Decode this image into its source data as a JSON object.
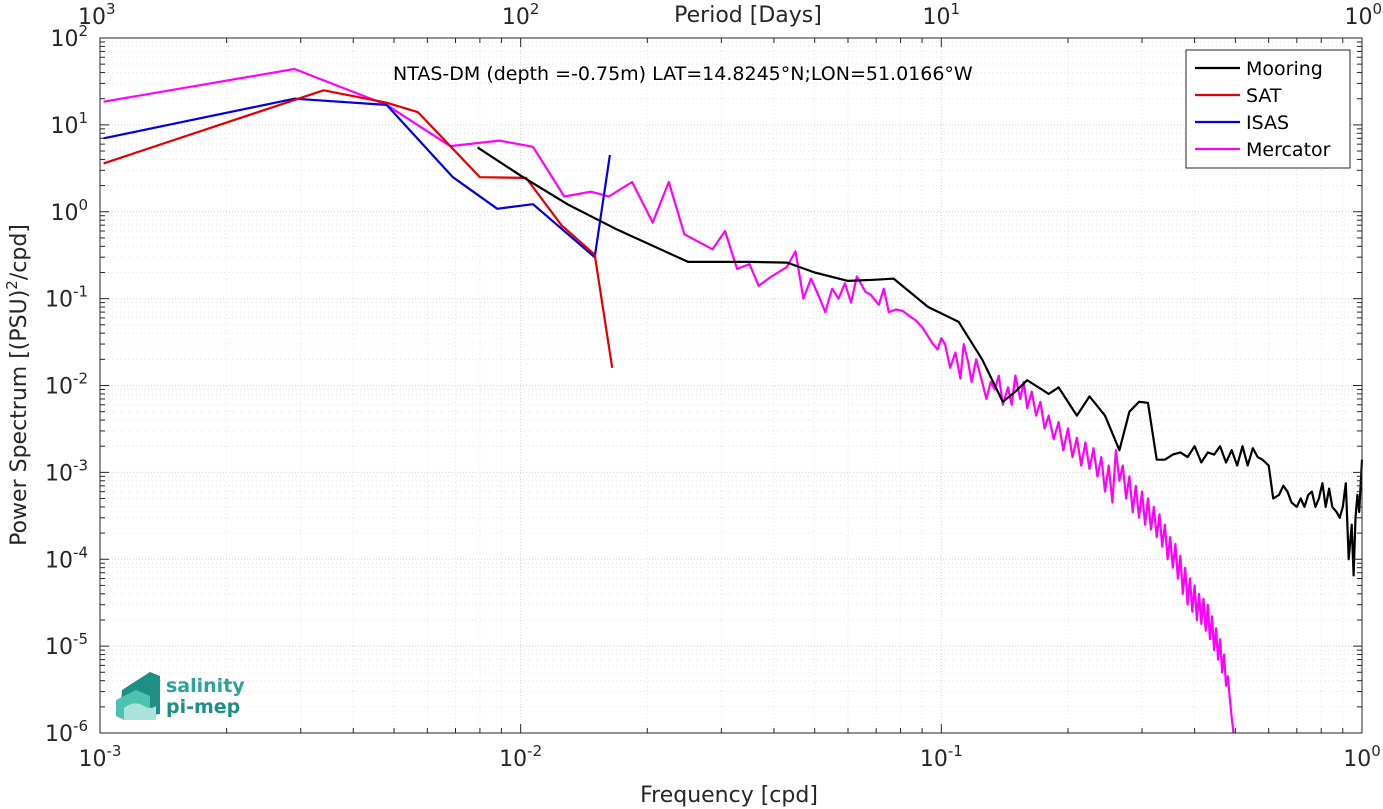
{
  "chart_data": {
    "type": "line",
    "title": "NTAS-DM (depth =-0.75m) LAT=14.8245°N;LON=51.0166°W",
    "xlabel": "Frequency [cpd]",
    "ylabel": "Power Spectrum [(PSU)^2/cpd]",
    "ylabel_parts": {
      "pre": "Power Spectrum [(PSU)",
      "sup": "2",
      "post": "/cpd]"
    },
    "top_axis_label": "Period [Days]",
    "x_scale": "log",
    "y_scale": "log",
    "xlim": [
      0.001,
      1
    ],
    "ylim": [
      1e-06,
      100
    ],
    "grid": true,
    "legend_position": "top-right",
    "x_ticks": [
      {
        "value": 0.001,
        "base": "10",
        "exp": "-3"
      },
      {
        "value": 0.01,
        "base": "10",
        "exp": "-2"
      },
      {
        "value": 0.1,
        "base": "10",
        "exp": "-1"
      },
      {
        "value": 1,
        "base": "10",
        "exp": "0"
      }
    ],
    "y_ticks": [
      {
        "value": 100,
        "base": "10",
        "exp": "2"
      },
      {
        "value": 10,
        "base": "10",
        "exp": "1"
      },
      {
        "value": 1,
        "base": "10",
        "exp": "0"
      },
      {
        "value": 0.1,
        "base": "10",
        "exp": "-1"
      },
      {
        "value": 0.01,
        "base": "10",
        "exp": "-2"
      },
      {
        "value": 0.001,
        "base": "10",
        "exp": "-3"
      },
      {
        "value": 0.0001,
        "base": "10",
        "exp": "-4"
      },
      {
        "value": 1e-05,
        "base": "10",
        "exp": "-5"
      },
      {
        "value": 1e-06,
        "base": "10",
        "exp": "-6"
      }
    ],
    "top_ticks": [
      {
        "freq": 0.001,
        "base": "10",
        "exp": "3"
      },
      {
        "freq": 0.01,
        "base": "10",
        "exp": "2"
      },
      {
        "freq": 0.1,
        "base": "10",
        "exp": "1"
      },
      {
        "freq": 1,
        "base": "10",
        "exp": "0"
      }
    ],
    "series": [
      {
        "name": "Mooring",
        "color": "#000000",
        "points": [
          [
            0.0079,
            5.5
          ],
          [
            0.01,
            2.6
          ],
          [
            0.013,
            1.2
          ],
          [
            0.017,
            0.62
          ],
          [
            0.025,
            0.265
          ],
          [
            0.03,
            0.265
          ],
          [
            0.035,
            0.265
          ],
          [
            0.043,
            0.26
          ],
          [
            0.05,
            0.2
          ],
          [
            0.06,
            0.16
          ],
          [
            0.07,
            0.165
          ],
          [
            0.077,
            0.17
          ],
          [
            0.093,
            0.08
          ],
          [
            0.11,
            0.054
          ],
          [
            0.125,
            0.02
          ],
          [
            0.14,
            0.0065
          ],
          [
            0.15,
            0.0085
          ],
          [
            0.16,
            0.0115
          ],
          [
            0.18,
            0.008
          ],
          [
            0.19,
            0.0095
          ],
          [
            0.21,
            0.0045
          ],
          [
            0.225,
            0.0075
          ],
          [
            0.245,
            0.0045
          ],
          [
            0.265,
            0.0018
          ],
          [
            0.28,
            0.005
          ],
          [
            0.295,
            0.0065
          ],
          [
            0.31,
            0.0063
          ],
          [
            0.325,
            0.0014
          ],
          [
            0.34,
            0.0014
          ],
          [
            0.355,
            0.0016
          ],
          [
            0.37,
            0.0017
          ],
          [
            0.385,
            0.0015
          ],
          [
            0.4,
            0.002
          ],
          [
            0.415,
            0.0013
          ],
          [
            0.43,
            0.0017
          ],
          [
            0.445,
            0.0016
          ],
          [
            0.46,
            0.002
          ],
          [
            0.475,
            0.0013
          ],
          [
            0.49,
            0.0018
          ],
          [
            0.505,
            0.0012
          ],
          [
            0.52,
            0.002
          ],
          [
            0.535,
            0.0012
          ],
          [
            0.55,
            0.0019
          ],
          [
            0.565,
            0.0015
          ],
          [
            0.58,
            0.0014
          ],
          [
            0.6,
            0.0012
          ],
          [
            0.615,
            0.0005
          ],
          [
            0.635,
            0.00055
          ],
          [
            0.65,
            0.0007
          ],
          [
            0.665,
            0.0006
          ],
          [
            0.68,
            0.00045
          ],
          [
            0.7,
            0.0004
          ],
          [
            0.715,
            0.0005
          ],
          [
            0.73,
            0.0004
          ],
          [
            0.745,
            0.00055
          ],
          [
            0.76,
            0.0006
          ],
          [
            0.775,
            0.0004
          ],
          [
            0.79,
            0.0005
          ],
          [
            0.805,
            0.00075
          ],
          [
            0.82,
            0.0004
          ],
          [
            0.835,
            0.00065
          ],
          [
            0.85,
            0.0004
          ],
          [
            0.87,
            0.00035
          ],
          [
            0.885,
            0.0003
          ],
          [
            0.9,
            0.0004
          ],
          [
            0.915,
            0.00075
          ],
          [
            0.93,
            0.0001
          ],
          [
            0.945,
            0.00025
          ],
          [
            0.955,
            6.5e-05
          ],
          [
            0.965,
            0.0003
          ],
          [
            0.975,
            0.00055
          ],
          [
            0.985,
            0.00035
          ],
          [
            1.0,
            0.0014
          ]
        ]
      },
      {
        "name": "SAT",
        "color": "#e00000",
        "points": [
          [
            0.00102,
            3.6
          ],
          [
            0.0034,
            25
          ],
          [
            0.0048,
            18
          ],
          [
            0.0057,
            14
          ],
          [
            0.008,
            2.5
          ],
          [
            0.0103,
            2.45
          ],
          [
            0.0125,
            0.7
          ],
          [
            0.015,
            0.32
          ],
          [
            0.0165,
            0.016
          ]
        ]
      },
      {
        "name": "ISAS",
        "color": "#0000e0",
        "points": [
          [
            0.00102,
            7
          ],
          [
            0.0029,
            20
          ],
          [
            0.0048,
            17
          ],
          [
            0.0069,
            2.5
          ],
          [
            0.0088,
            1.08
          ],
          [
            0.0107,
            1.22
          ],
          [
            0.015,
            0.3
          ],
          [
            0.0163,
            4.5
          ]
        ]
      },
      {
        "name": "Mercator",
        "color": "#ff00ff",
        "points": [
          [
            0.00102,
            18.5
          ],
          [
            0.0029,
            44
          ],
          [
            0.0048,
            17
          ],
          [
            0.0068,
            5.7
          ],
          [
            0.0089,
            6.6
          ],
          [
            0.0107,
            5.6
          ],
          [
            0.0127,
            1.5
          ],
          [
            0.0147,
            1.7
          ],
          [
            0.0162,
            1.5
          ],
          [
            0.0184,
            2.2
          ],
          [
            0.0206,
            0.75
          ],
          [
            0.0225,
            2.2
          ],
          [
            0.0245,
            0.55
          ],
          [
            0.0286,
            0.37
          ],
          [
            0.0306,
            0.6
          ],
          [
            0.0327,
            0.22
          ],
          [
            0.035,
            0.25
          ],
          [
            0.0368,
            0.14
          ],
          [
            0.0388,
            0.17
          ],
          [
            0.0409,
            0.2
          ],
          [
            0.0429,
            0.23
          ],
          [
            0.045,
            0.35
          ],
          [
            0.047,
            0.1
          ],
          [
            0.049,
            0.17
          ],
          [
            0.051,
            0.11
          ],
          [
            0.053,
            0.07
          ],
          [
            0.055,
            0.13
          ],
          [
            0.057,
            0.1
          ],
          [
            0.059,
            0.15
          ],
          [
            0.061,
            0.09
          ],
          [
            0.063,
            0.18
          ],
          [
            0.066,
            0.12
          ],
          [
            0.068,
            0.11
          ],
          [
            0.071,
            0.085
          ],
          [
            0.073,
            0.13
          ],
          [
            0.075,
            0.07
          ],
          [
            0.078,
            0.075
          ],
          [
            0.081,
            0.072
          ],
          [
            0.084,
            0.063
          ],
          [
            0.087,
            0.056
          ],
          [
            0.09,
            0.047
          ],
          [
            0.092,
            0.04
          ],
          [
            0.095,
            0.031
          ],
          [
            0.098,
            0.026
          ],
          [
            0.1,
            0.035
          ],
          [
            0.102,
            0.03
          ],
          [
            0.105,
            0.016
          ],
          [
            0.108,
            0.024
          ],
          [
            0.111,
            0.012
          ],
          [
            0.113,
            0.03
          ],
          [
            0.116,
            0.018
          ],
          [
            0.118,
            0.011
          ],
          [
            0.121,
            0.02
          ],
          [
            0.125,
            0.011
          ],
          [
            0.128,
            0.007
          ],
          [
            0.131,
            0.011
          ],
          [
            0.134,
            0.009
          ],
          [
            0.137,
            0.013
          ],
          [
            0.14,
            0.006
          ],
          [
            0.144,
            0.0095
          ],
          [
            0.147,
            0.006
          ],
          [
            0.15,
            0.013
          ],
          [
            0.154,
            0.007
          ],
          [
            0.157,
            0.011
          ],
          [
            0.16,
            0.0055
          ],
          [
            0.164,
            0.0085
          ],
          [
            0.168,
            0.0045
          ],
          [
            0.172,
            0.0065
          ],
          [
            0.176,
            0.0032
          ],
          [
            0.18,
            0.0045
          ],
          [
            0.185,
            0.0024
          ],
          [
            0.19,
            0.0038
          ],
          [
            0.195,
            0.0018
          ],
          [
            0.2,
            0.0032
          ],
          [
            0.205,
            0.0015
          ],
          [
            0.21,
            0.0025
          ],
          [
            0.215,
            0.0012
          ],
          [
            0.22,
            0.0022
          ],
          [
            0.225,
            0.0011
          ],
          [
            0.23,
            0.0019
          ],
          [
            0.235,
            0.0009
          ],
          [
            0.24,
            0.0015
          ],
          [
            0.245,
            0.0006
          ],
          [
            0.25,
            0.0012
          ],
          [
            0.255,
            0.00045
          ],
          [
            0.26,
            0.0018
          ],
          [
            0.265,
            0.0008
          ],
          [
            0.27,
            0.0012
          ],
          [
            0.275,
            0.0005
          ],
          [
            0.28,
            0.0009
          ],
          [
            0.285,
            0.00035
          ],
          [
            0.29,
            0.0007
          ],
          [
            0.295,
            0.0003
          ],
          [
            0.3,
            0.0006
          ],
          [
            0.305,
            0.00025
          ],
          [
            0.31,
            0.0005
          ],
          [
            0.315,
            0.00022
          ],
          [
            0.32,
            0.0004
          ],
          [
            0.325,
            0.00018
          ],
          [
            0.33,
            0.00033
          ],
          [
            0.335,
            0.00014
          ],
          [
            0.34,
            0.00025
          ],
          [
            0.345,
            0.0001
          ],
          [
            0.35,
            0.00018
          ],
          [
            0.355,
            8e-05
          ],
          [
            0.36,
            0.00015
          ],
          [
            0.365,
            6e-05
          ],
          [
            0.37,
            0.00011
          ],
          [
            0.375,
            4e-05
          ],
          [
            0.38,
            8e-05
          ],
          [
            0.385,
            3e-05
          ],
          [
            0.39,
            6e-05
          ],
          [
            0.395,
            2.5e-05
          ],
          [
            0.4,
            5e-05
          ],
          [
            0.405,
            2e-05
          ],
          [
            0.41,
            4e-05
          ],
          [
            0.415,
            1.8e-05
          ],
          [
            0.42,
            3.5e-05
          ],
          [
            0.425,
            1.5e-05
          ],
          [
            0.43,
            3e-05
          ],
          [
            0.435,
            1.2e-05
          ],
          [
            0.44,
            2.2e-05
          ],
          [
            0.445,
            9e-06
          ],
          [
            0.45,
            1.6e-05
          ],
          [
            0.455,
            7e-06
          ],
          [
            0.46,
            1.2e-05
          ],
          [
            0.465,
            5e-06
          ],
          [
            0.47,
            8e-06
          ],
          [
            0.475,
            3.5e-06
          ],
          [
            0.48,
            4.5e-06
          ],
          [
            0.485,
            2.5e-06
          ],
          [
            0.49,
            1.5e-06
          ],
          [
            0.495,
            1e-06
          ]
        ]
      }
    ]
  },
  "legend": {
    "items": [
      {
        "label": "Mooring",
        "color": "#000000"
      },
      {
        "label": "SAT",
        "color": "#e00000"
      },
      {
        "label": "ISAS",
        "color": "#0000e0"
      },
      {
        "label": "Mercator",
        "color": "#ff00ff"
      }
    ]
  },
  "logo": {
    "line1": "salinity",
    "line2": "pi-mep",
    "color": "#2aa39a",
    "icon": "salinity-logo-icon"
  }
}
